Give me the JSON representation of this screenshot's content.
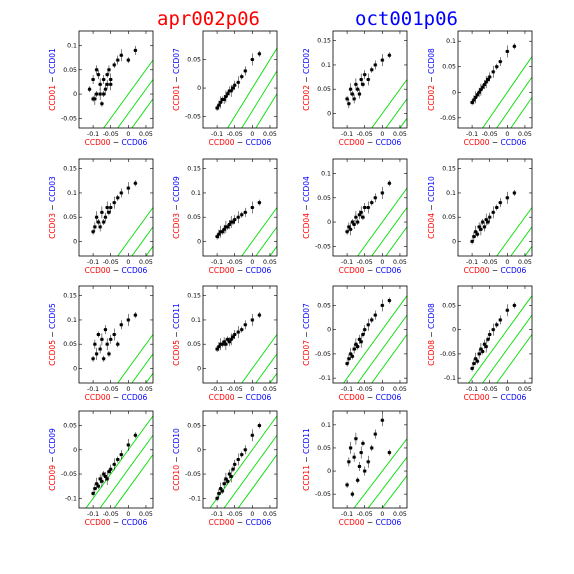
{
  "header": {
    "left": "apr002p06",
    "right": "oct001p06"
  },
  "colors": {
    "red": "#ff0000",
    "blue": "#0000ff",
    "line": "#00dd00",
    "marker": "#000000"
  },
  "chart_data": [
    {
      "type": "scatter",
      "xlabel_a": "CCD00",
      "xlabel_b": "CCD06",
      "ylabel_a": "CCD01",
      "ylabel_b": "CCD01",
      "yticks": [
        "-0.05",
        "0",
        "0.05",
        "0.1"
      ],
      "ylim": [
        -0.07,
        0.13
      ],
      "x": [
        -0.11,
        -0.1,
        -0.095,
        -0.09,
        -0.085,
        -0.08,
        -0.075,
        -0.07,
        -0.065,
        -0.06,
        -0.055,
        -0.05,
        -0.04,
        -0.03,
        -0.02,
        -0.1,
        -0.09,
        -0.08,
        -0.07,
        -0.06,
        -0.05,
        0.0,
        0.02
      ],
      "y": [
        0.01,
        0.03,
        -0.01,
        0.0,
        0.04,
        0.02,
        -0.02,
        0.03,
        0.01,
        0.04,
        0.05,
        0.02,
        0.06,
        0.07,
        0.08,
        -0.01,
        0.05,
        0.0,
        0.0,
        0.02,
        0.03,
        0.07,
        0.09
      ]
    },
    {
      "type": "scatter",
      "xlabel_a": "CCD00",
      "xlabel_b": "CCD06",
      "ylabel_a": "CCD01",
      "ylabel_b": "CCD07",
      "yticks": [
        "-0.05",
        "0",
        "0.05"
      ],
      "ylim": [
        -0.07,
        0.1
      ],
      "x": [
        -0.1,
        -0.095,
        -0.09,
        -0.085,
        -0.08,
        -0.075,
        -0.07,
        -0.065,
        -0.06,
        -0.055,
        -0.05,
        -0.04,
        -0.03,
        -0.02,
        0.0,
        0.02
      ],
      "y": [
        -0.035,
        -0.03,
        -0.025,
        -0.02,
        -0.02,
        -0.015,
        -0.01,
        -0.005,
        -0.005,
        0.0,
        0.005,
        0.01,
        0.02,
        0.03,
        0.05,
        0.06
      ]
    },
    {
      "type": "scatter",
      "xlabel_a": "CCD00",
      "xlabel_b": "CCD06",
      "ylabel_a": "CCD02",
      "ylabel_b": "CCD02",
      "yticks": [
        "0",
        "0.05",
        "0.1",
        "0.15"
      ],
      "ylim": [
        -0.03,
        0.17
      ],
      "x": [
        -0.1,
        -0.095,
        -0.09,
        -0.085,
        -0.08,
        -0.075,
        -0.07,
        -0.065,
        -0.06,
        -0.055,
        -0.05,
        -0.04,
        -0.03,
        -0.02,
        0.0,
        0.02
      ],
      "y": [
        0.03,
        0.02,
        0.05,
        0.04,
        0.03,
        0.06,
        0.05,
        0.04,
        0.07,
        0.06,
        0.08,
        0.07,
        0.09,
        0.1,
        0.11,
        0.12
      ]
    },
    {
      "type": "scatter",
      "xlabel_a": "CCD00",
      "xlabel_b": "CCD06",
      "ylabel_a": "CCD02",
      "ylabel_b": "CCD08",
      "yticks": [
        "-0.05",
        "0",
        "0.05",
        "0.1"
      ],
      "ylim": [
        -0.07,
        0.12
      ],
      "x": [
        -0.1,
        -0.095,
        -0.09,
        -0.085,
        -0.08,
        -0.075,
        -0.07,
        -0.065,
        -0.06,
        -0.055,
        -0.05,
        -0.04,
        -0.03,
        -0.02,
        0.0,
        0.02
      ],
      "y": [
        -0.02,
        -0.015,
        -0.01,
        -0.005,
        0.0,
        0.005,
        0.01,
        0.015,
        0.02,
        0.025,
        0.03,
        0.04,
        0.05,
        0.06,
        0.08,
        0.09
      ]
    },
    {
      "type": "scatter",
      "xlabel_a": "CCD00",
      "xlabel_b": "CCD06",
      "ylabel_a": "CCD03",
      "ylabel_b": "CCD03",
      "yticks": [
        "0",
        "0.05",
        "0.1",
        "0.15"
      ],
      "ylim": [
        -0.03,
        0.17
      ],
      "x": [
        -0.1,
        -0.095,
        -0.09,
        -0.085,
        -0.08,
        -0.075,
        -0.07,
        -0.065,
        -0.06,
        -0.055,
        -0.05,
        -0.04,
        -0.03,
        -0.02,
        0.0,
        0.02
      ],
      "y": [
        0.02,
        0.03,
        0.05,
        0.04,
        0.03,
        0.06,
        0.04,
        0.05,
        0.07,
        0.06,
        0.07,
        0.08,
        0.09,
        0.1,
        0.11,
        0.12
      ]
    },
    {
      "type": "scatter",
      "xlabel_a": "CCD00",
      "xlabel_b": "CCD06",
      "ylabel_a": "CCD03",
      "ylabel_b": "CCD09",
      "yticks": [
        "0",
        "0.05",
        "0.1",
        "0.15"
      ],
      "ylim": [
        -0.03,
        0.17
      ],
      "x": [
        -0.1,
        -0.095,
        -0.09,
        -0.085,
        -0.08,
        -0.075,
        -0.07,
        -0.065,
        -0.06,
        -0.055,
        -0.05,
        -0.04,
        -0.03,
        -0.02,
        0.0,
        0.02
      ],
      "y": [
        0.01,
        0.015,
        0.02,
        0.02,
        0.025,
        0.03,
        0.03,
        0.035,
        0.04,
        0.04,
        0.045,
        0.05,
        0.055,
        0.06,
        0.07,
        0.08
      ]
    },
    {
      "type": "scatter",
      "xlabel_a": "CCD00",
      "xlabel_b": "CCD06",
      "ylabel_a": "CCD04",
      "ylabel_b": "CCD04",
      "yticks": [
        "-0.05",
        "0",
        "0.05",
        "0.1"
      ],
      "ylim": [
        -0.07,
        0.13
      ],
      "x": [
        -0.1,
        -0.095,
        -0.09,
        -0.085,
        -0.08,
        -0.075,
        -0.07,
        -0.065,
        -0.06,
        -0.055,
        -0.05,
        -0.04,
        -0.03,
        -0.02,
        0.0,
        0.02
      ],
      "y": [
        -0.02,
        -0.01,
        -0.015,
        0.0,
        -0.005,
        0.01,
        0.0,
        0.015,
        0.02,
        0.01,
        0.03,
        0.03,
        0.04,
        0.05,
        0.06,
        0.08
      ]
    },
    {
      "type": "scatter",
      "xlabel_a": "CCD00",
      "xlabel_b": "CCD06",
      "ylabel_a": "CCD04",
      "ylabel_b": "CCD10",
      "yticks": [
        "0",
        "0.05",
        "0.1",
        "0.15"
      ],
      "ylim": [
        -0.03,
        0.17
      ],
      "x": [
        -0.1,
        -0.095,
        -0.09,
        -0.085,
        -0.08,
        -0.075,
        -0.07,
        -0.065,
        -0.06,
        -0.055,
        -0.05,
        -0.04,
        -0.03,
        -0.02,
        0.0,
        0.02
      ],
      "y": [
        0.0,
        0.01,
        0.02,
        0.015,
        0.03,
        0.025,
        0.04,
        0.03,
        0.045,
        0.04,
        0.05,
        0.06,
        0.07,
        0.08,
        0.09,
        0.1
      ]
    },
    {
      "type": "scatter",
      "xlabel_a": "CCD00",
      "xlabel_b": "CCD06",
      "ylabel_a": "CCD05",
      "ylabel_b": "CCD05",
      "yticks": [
        "0",
        "0.05",
        "0.1",
        "0.15"
      ],
      "ylim": [
        -0.03,
        0.17
      ],
      "x": [
        -0.1,
        -0.095,
        -0.09,
        -0.085,
        -0.08,
        -0.075,
        -0.07,
        -0.065,
        -0.06,
        -0.055,
        -0.05,
        -0.04,
        -0.03,
        -0.02,
        0.0,
        0.02
      ],
      "y": [
        0.02,
        0.05,
        0.03,
        0.07,
        0.04,
        0.06,
        0.02,
        0.08,
        0.05,
        0.03,
        0.06,
        0.07,
        0.05,
        0.09,
        0.1,
        0.11
      ]
    },
    {
      "type": "scatter",
      "xlabel_a": "CCD00",
      "xlabel_b": "CCD06",
      "ylabel_a": "CCD05",
      "ylabel_b": "CCD11",
      "yticks": [
        "0",
        "0.05",
        "0.1",
        "0.15"
      ],
      "ylim": [
        -0.03,
        0.17
      ],
      "x": [
        -0.1,
        -0.095,
        -0.09,
        -0.085,
        -0.08,
        -0.075,
        -0.07,
        -0.065,
        -0.06,
        -0.055,
        -0.05,
        -0.04,
        -0.03,
        -0.02,
        0.0,
        0.02
      ],
      "y": [
        0.04,
        0.045,
        0.05,
        0.05,
        0.055,
        0.05,
        0.06,
        0.055,
        0.06,
        0.065,
        0.07,
        0.075,
        0.08,
        0.09,
        0.1,
        0.11
      ]
    },
    {
      "type": "scatter",
      "xlabel_a": "CCD00",
      "xlabel_b": "CCD06",
      "ylabel_a": "CCD07",
      "ylabel_b": "CCD07",
      "yticks": [
        "-0.1",
        "-0.05",
        "0",
        "0.05"
      ],
      "ylim": [
        -0.11,
        0.09
      ],
      "x": [
        -0.1,
        -0.095,
        -0.09,
        -0.085,
        -0.08,
        -0.075,
        -0.07,
        -0.065,
        -0.06,
        -0.055,
        -0.05,
        -0.04,
        -0.03,
        -0.02,
        0.0,
        0.02
      ],
      "y": [
        -0.07,
        -0.06,
        -0.05,
        -0.055,
        -0.04,
        -0.03,
        -0.035,
        -0.02,
        -0.025,
        -0.01,
        0.0,
        0.01,
        0.02,
        0.03,
        0.05,
        0.06
      ]
    },
    {
      "type": "scatter",
      "xlabel_a": "CCD00",
      "xlabel_b": "CCD06",
      "ylabel_a": "CCD08",
      "ylabel_b": "CCD08",
      "yticks": [
        "-0.1",
        "-0.05",
        "0",
        "0.05"
      ],
      "ylim": [
        -0.11,
        0.09
      ],
      "x": [
        -0.1,
        -0.095,
        -0.09,
        -0.085,
        -0.08,
        -0.075,
        -0.07,
        -0.065,
        -0.06,
        -0.055,
        -0.05,
        -0.04,
        -0.03,
        -0.02,
        0.0,
        0.02
      ],
      "y": [
        -0.08,
        -0.07,
        -0.06,
        -0.065,
        -0.05,
        -0.04,
        -0.045,
        -0.03,
        -0.035,
        -0.02,
        -0.01,
        0.0,
        0.01,
        0.02,
        0.04,
        0.05
      ]
    },
    {
      "type": "scatter",
      "xlabel_a": "CCD00",
      "xlabel_b": "CCD06",
      "ylabel_a": "CCD09",
      "ylabel_b": "CCD09",
      "yticks": [
        "-0.1",
        "-0.05",
        "0",
        "0.05"
      ],
      "ylim": [
        -0.12,
        0.08
      ],
      "x": [
        -0.1,
        -0.095,
        -0.09,
        -0.085,
        -0.08,
        -0.075,
        -0.07,
        -0.065,
        -0.06,
        -0.055,
        -0.05,
        -0.04,
        -0.03,
        -0.02,
        0.0,
        0.02
      ],
      "y": [
        -0.09,
        -0.08,
        -0.07,
        -0.075,
        -0.06,
        -0.065,
        -0.05,
        -0.055,
        -0.06,
        -0.045,
        -0.04,
        -0.03,
        -0.02,
        -0.01,
        0.01,
        0.03
      ]
    },
    {
      "type": "scatter",
      "xlabel_a": "CCD00",
      "xlabel_b": "CCD06",
      "ylabel_a": "CCD10",
      "ylabel_b": "CCD10",
      "yticks": [
        "-0.1",
        "-0.05",
        "0",
        "0.05"
      ],
      "ylim": [
        -0.12,
        0.08
      ],
      "x": [
        -0.1,
        -0.095,
        -0.09,
        -0.085,
        -0.08,
        -0.075,
        -0.07,
        -0.065,
        -0.06,
        -0.055,
        -0.05,
        -0.04,
        -0.03,
        -0.02,
        0.0,
        0.02
      ],
      "y": [
        -0.1,
        -0.09,
        -0.08,
        -0.085,
        -0.07,
        -0.06,
        -0.065,
        -0.05,
        -0.055,
        -0.04,
        -0.03,
        -0.02,
        -0.01,
        0.0,
        0.03,
        0.05
      ]
    },
    {
      "type": "scatter",
      "xlabel_a": "CCD00",
      "xlabel_b": "CCD06",
      "ylabel_a": "CCD11",
      "ylabel_b": "CCD11",
      "yticks": [
        "-0.05",
        "0",
        "0.05",
        "0.1"
      ],
      "ylim": [
        -0.08,
        0.13
      ],
      "x": [
        -0.1,
        -0.095,
        -0.09,
        -0.085,
        -0.08,
        -0.075,
        -0.07,
        -0.065,
        -0.06,
        -0.055,
        -0.05,
        -0.04,
        -0.03,
        -0.02,
        0.0,
        0.02
      ],
      "y": [
        -0.03,
        0.02,
        0.05,
        -0.05,
        0.03,
        0.07,
        -0.02,
        0.01,
        0.04,
        0.06,
        0.0,
        0.02,
        0.05,
        0.08,
        0.11,
        0.04
      ]
    }
  ]
}
